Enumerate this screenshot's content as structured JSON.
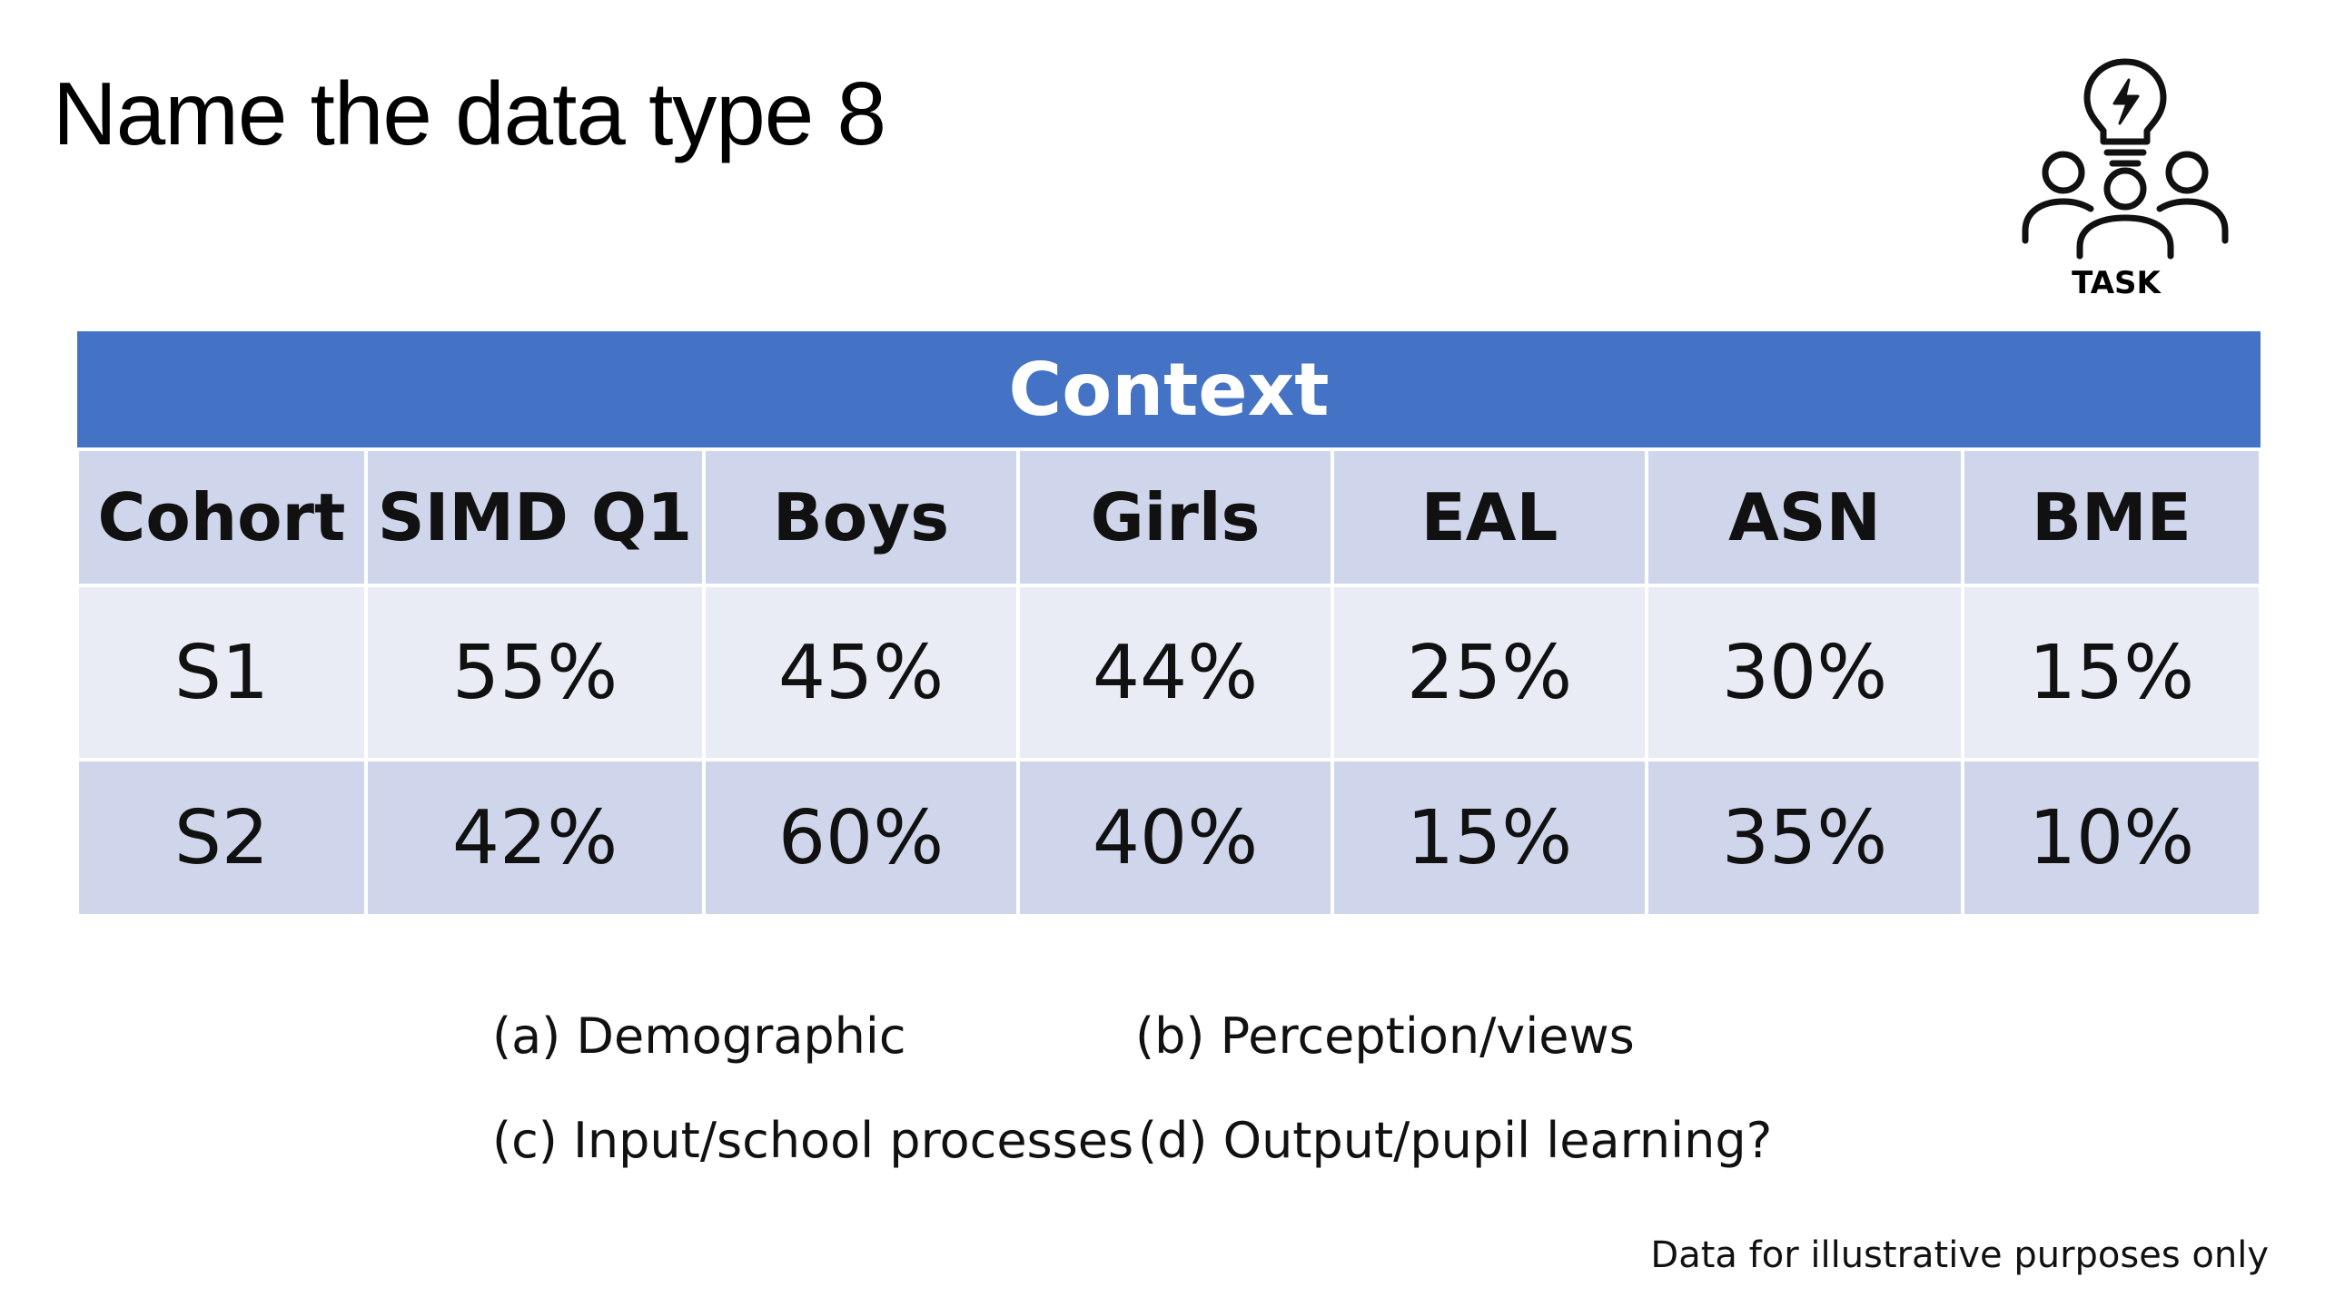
{
  "slide": {
    "title": "Name the data type 8"
  },
  "task_badge": {
    "label": "TASK",
    "icon": "team-idea-icon"
  },
  "table": {
    "banner": "Context",
    "headers": [
      "Cohort",
      "SIMD Q1",
      "Boys",
      "Girls",
      "EAL",
      "ASN",
      "BME"
    ],
    "rows": [
      [
        "S1",
        "55%",
        "45%",
        "44%",
        "25%",
        "30%",
        "15%"
      ],
      [
        "S2",
        "42%",
        "60%",
        "40%",
        "15%",
        "35%",
        "10%"
      ]
    ]
  },
  "options": {
    "a": "(a) Demographic",
    "b": "(b) Perception/views",
    "c": "(c) Input/school processes",
    "d": "(d) Output/pupil learning?"
  },
  "footer": {
    "disclaimer": "Data for illustrative purposes only"
  },
  "colors": {
    "banner": "#4472c4",
    "header_band": "#cfd5ea",
    "light_band": "#e9ebf5"
  }
}
